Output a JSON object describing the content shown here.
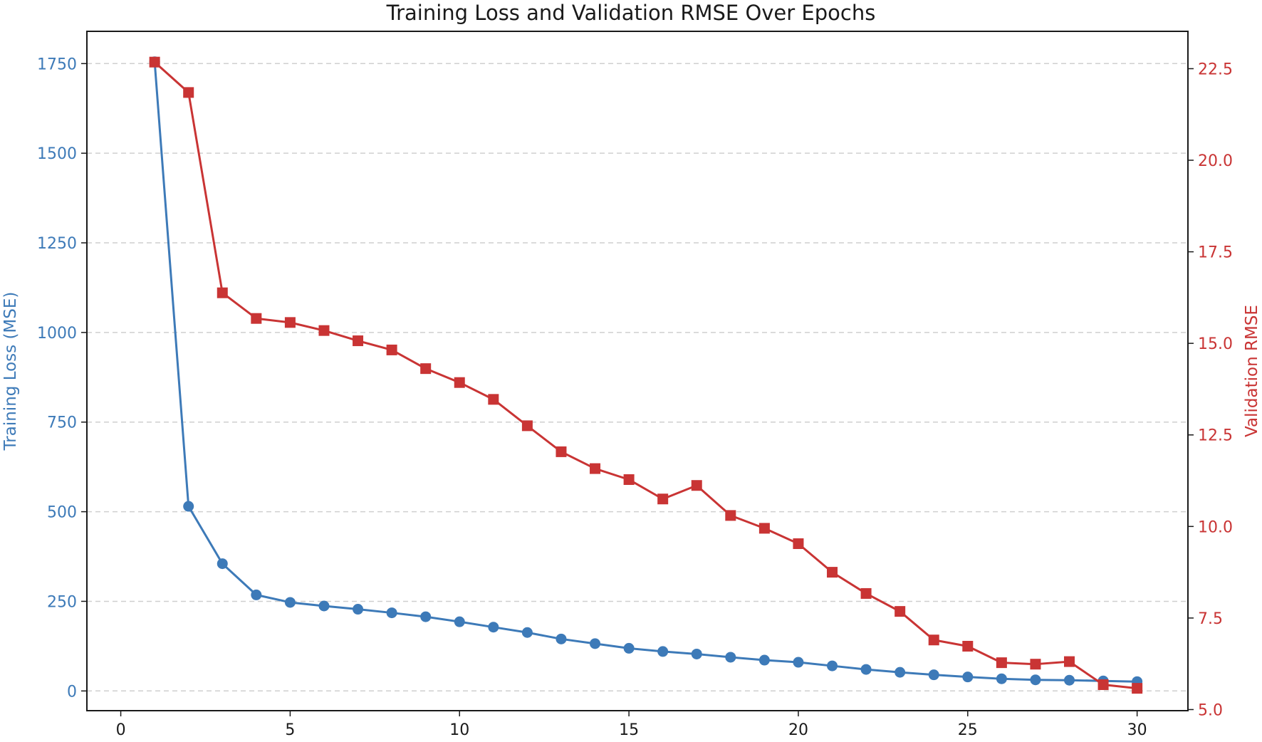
{
  "chart_data": {
    "type": "line",
    "title": "Training Loss and Validation RMSE Over Epochs",
    "xlabel": "",
    "ylabel_left": "Training Loss (MSE)",
    "ylabel_right": "Validation RMSE",
    "xlim": [
      -1,
      31.5
    ],
    "ylim_left": [
      -55,
      1840
    ],
    "ylim_right": [
      4.97,
      23.52
    ],
    "x_ticks": [
      0,
      5,
      10,
      15,
      20,
      25,
      30
    ],
    "y_left_ticks": [
      0,
      250,
      500,
      750,
      1000,
      1250,
      1500,
      1750
    ],
    "y_right_ticks": [
      "5.0",
      "7.5",
      "10.0",
      "12.5",
      "15.0",
      "17.5",
      "20.0",
      "22.5"
    ],
    "grid": "horizontal-dashed",
    "x": [
      1,
      2,
      3,
      4,
      5,
      6,
      7,
      8,
      9,
      10,
      11,
      12,
      13,
      14,
      15,
      16,
      17,
      18,
      19,
      20,
      21,
      22,
      23,
      24,
      25,
      26,
      27,
      28,
      29,
      30
    ],
    "series": [
      {
        "name": "Training Loss (MSE)",
        "axis": "left",
        "marker": "circle",
        "color": "#3d7ab8",
        "values": [
          1755,
          515,
          355,
          268,
          247,
          237,
          228,
          218,
          207,
          193,
          178,
          163,
          145,
          132,
          119,
          110,
          103,
          94,
          86,
          80,
          70,
          60,
          52,
          45,
          39,
          34,
          31,
          30,
          28,
          26
        ]
      },
      {
        "name": "Validation RMSE",
        "axis": "right",
        "marker": "square",
        "color": "#c93434",
        "values": [
          22.68,
          21.85,
          16.38,
          15.68,
          15.57,
          15.35,
          15.07,
          14.82,
          14.31,
          13.93,
          13.47,
          12.75,
          12.04,
          11.58,
          11.28,
          10.75,
          11.12,
          10.3,
          9.95,
          9.53,
          8.75,
          8.17,
          7.68,
          6.9,
          6.73,
          6.28,
          6.24,
          6.31,
          5.68,
          5.58
        ]
      }
    ]
  },
  "colors": {
    "left_axis": "#3d7ab8",
    "right_axis": "#c93434",
    "frame": "#1a1a1a",
    "grid": "#cfcfcf"
  }
}
